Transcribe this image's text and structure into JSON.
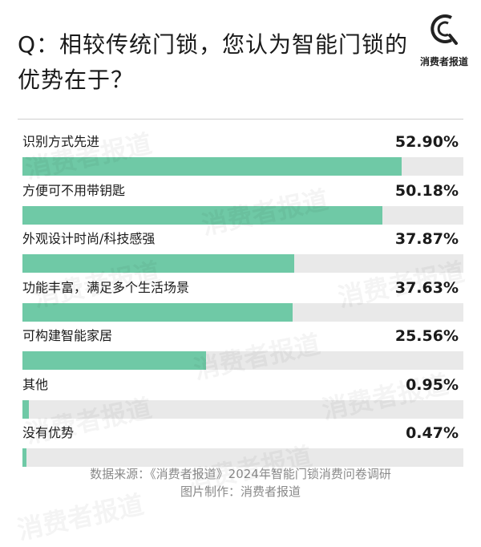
{
  "title": "Q：相较传统门锁，您认为智能门锁的优势在于？",
  "logo_text": "消费者报道",
  "watermark_text": "消费者报道",
  "footer": {
    "line1": "数据来源：《消费者报道》2024年智能门锁消费问卷调研",
    "line2": "图片制作：消费者报道"
  },
  "colors": {
    "bar": "#6fc9a6",
    "track": "#e9e9e9"
  },
  "chart_data": {
    "type": "bar",
    "orientation": "horizontal",
    "categories": [
      "识别方式先进",
      "方便可不用带钥匙",
      "外观设计时尚/科技感强",
      "功能丰富，满足多个生活场景",
      "可构建智能家居",
      "其他",
      "没有优势"
    ],
    "values": [
      52.9,
      50.18,
      37.87,
      37.63,
      25.56,
      0.95,
      0.47
    ],
    "value_labels": [
      "52.90%",
      "50.18%",
      "37.87%",
      "37.63%",
      "25.56%",
      "0.95%",
      "0.47%"
    ],
    "unit": "%",
    "xlim": [
      0,
      61.5
    ],
    "grid": false
  }
}
